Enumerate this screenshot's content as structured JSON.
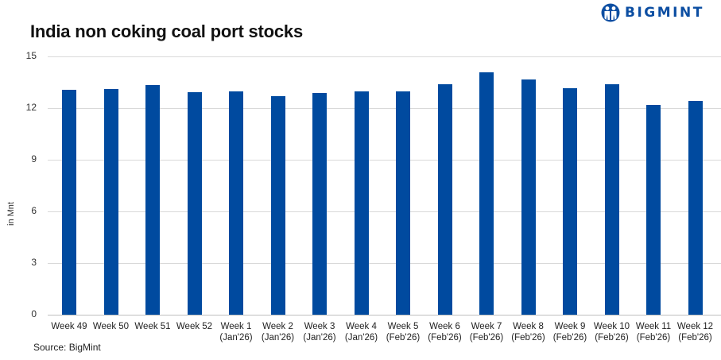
{
  "header": {
    "title": "India non coking coal port stocks",
    "logo_text": "BIGMINT",
    "logo_color": "#0c4ea2"
  },
  "footer": {
    "source": "Source: BigMint"
  },
  "chart_data": {
    "type": "bar",
    "title": "India non coking coal port stocks",
    "xlabel": "",
    "ylabel": "in Mnt",
    "ylim": [
      0,
      15
    ],
    "yticks": [
      0,
      3,
      6,
      9,
      12,
      15
    ],
    "grid": true,
    "legend": null,
    "bar_color": "#004a9f",
    "categories": [
      "Week 49",
      "Week 50",
      "Week 51",
      "Week 52",
      "Week 1 (Jan'26)",
      "Week 2 (Jan'26)",
      "Week 3 (Jan'26)",
      "Week 4 (Jan'26)",
      "Week 5 (Feb'26)",
      "Week 6 (Feb'26)",
      "Week 7 (Feb'26)",
      "Week 8 (Feb'26)",
      "Week 9 (Feb'26)",
      "Week 10 (Feb'26)",
      "Week 11 (Feb'26)",
      "Week 12 (Feb'26)"
    ],
    "category_lines": [
      [
        "Week 49",
        ""
      ],
      [
        "Week 50",
        ""
      ],
      [
        "Week 51",
        ""
      ],
      [
        "Week 52",
        ""
      ],
      [
        "Week 1",
        "(Jan'26)"
      ],
      [
        "Week 2",
        "(Jan'26)"
      ],
      [
        "Week 3",
        "(Jan'26)"
      ],
      [
        "Week 4",
        "(Jan'26)"
      ],
      [
        "Week 5",
        "(Feb'26)"
      ],
      [
        "Week 6",
        "(Feb'26)"
      ],
      [
        "Week 7",
        "(Feb'26)"
      ],
      [
        "Week 8",
        "(Feb'26)"
      ],
      [
        "Week 9",
        "(Feb'26)"
      ],
      [
        "Week 10",
        "(Feb'26)"
      ],
      [
        "Week 11",
        "(Feb'26)"
      ],
      [
        "Week 12",
        "(Feb'26)"
      ]
    ],
    "values": [
      13.06,
      13.09,
      13.32,
      12.93,
      12.97,
      12.68,
      12.86,
      12.97,
      12.97,
      13.38,
      14.09,
      13.64,
      13.14,
      13.38,
      12.17,
      12.4
    ]
  }
}
